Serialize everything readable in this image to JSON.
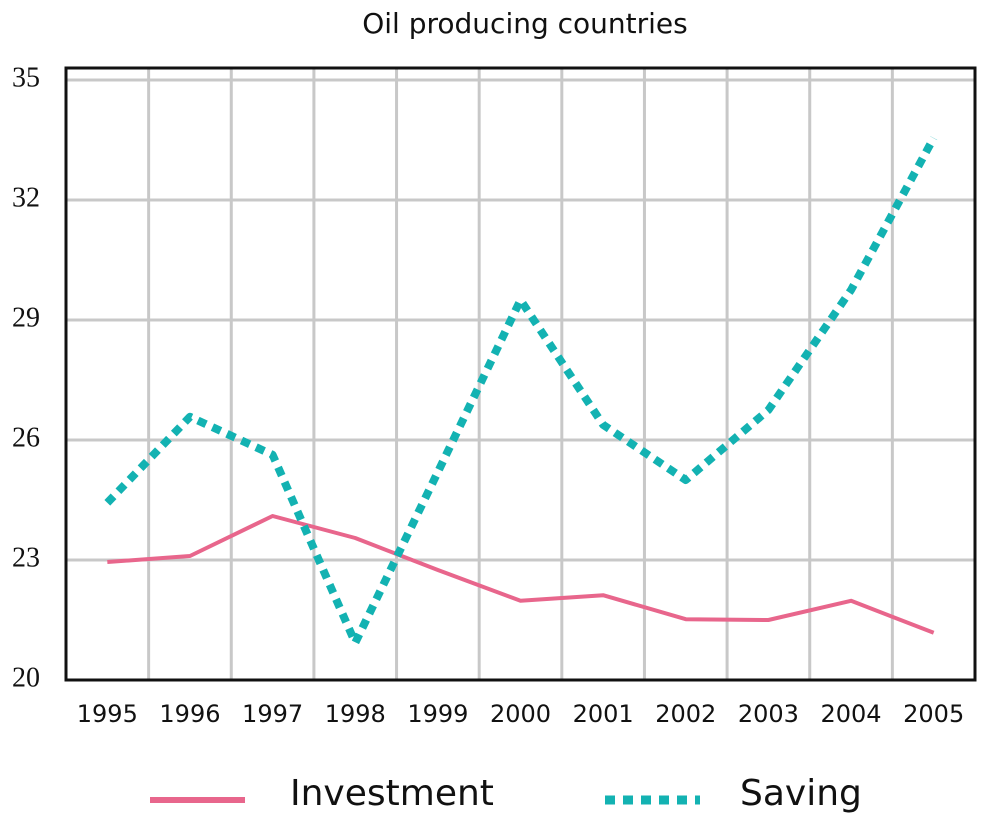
{
  "chart_data": {
    "type": "line",
    "title": "Oil producing countries",
    "categories": [
      "1995",
      "1996",
      "1997",
      "1998",
      "1999",
      "2000",
      "2001",
      "2002",
      "2003",
      "2004",
      "2005"
    ],
    "series": [
      {
        "name": "Investment",
        "color": "#e8668c",
        "style": "solid",
        "values": [
          22.95,
          23.1,
          24.1,
          23.55,
          22.75,
          21.98,
          22.12,
          21.52,
          21.5,
          21.98,
          21.18
        ]
      },
      {
        "name": "Saving",
        "color": "#13b2b2",
        "style": "dotted",
        "values": [
          24.43,
          26.58,
          25.63,
          20.93,
          25.2,
          29.5,
          26.38,
          25.0,
          26.75,
          29.75,
          33.55
        ]
      }
    ],
    "ylim": [
      20,
      35.3
    ],
    "yticks": [
      20,
      23,
      26,
      29,
      32,
      35
    ],
    "grid": true
  }
}
